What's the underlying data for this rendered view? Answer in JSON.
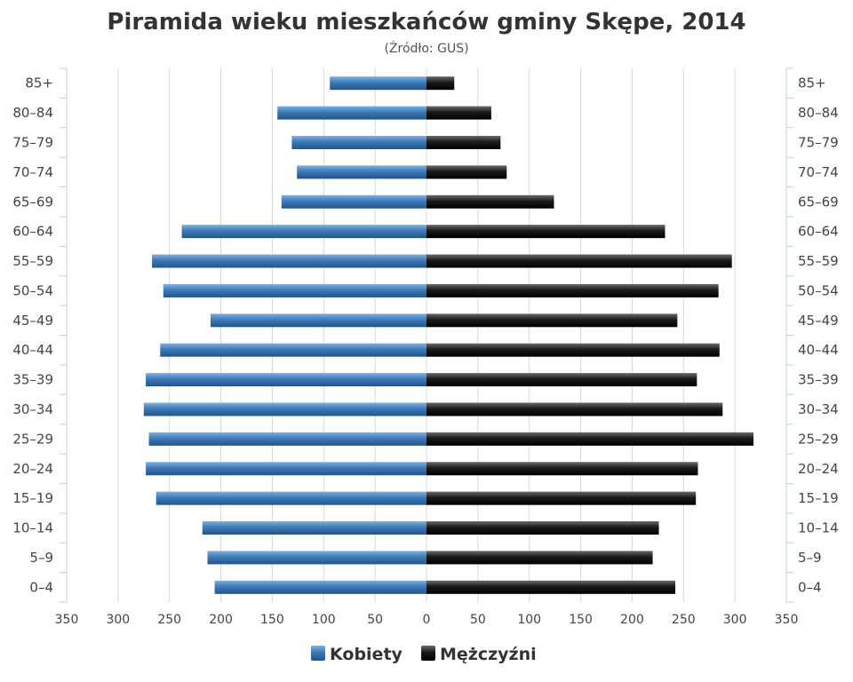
{
  "chart_data": {
    "type": "bar",
    "title": "Piramida wieku mieszkańców gminy Skępe, 2014",
    "subtitle": "(Źródło: GUS)",
    "categories": [
      "85+",
      "80–84",
      "75–79",
      "70–74",
      "65–69",
      "60–64",
      "55–59",
      "50–54",
      "45–49",
      "40–44",
      "35–39",
      "30–34",
      "25–29",
      "20–24",
      "15–19",
      "10–14",
      "5–9",
      "0–4"
    ],
    "series": [
      {
        "name": "Kobiety",
        "color": "#3d7ab8",
        "values": [
          94,
          145,
          131,
          126,
          141,
          238,
          267,
          256,
          210,
          259,
          273,
          275,
          270,
          273,
          263,
          218,
          213,
          206
        ]
      },
      {
        "name": "Mężczyźni",
        "color": "#1a1a1a",
        "values": [
          27,
          63,
          72,
          78,
          124,
          232,
          297,
          284,
          244,
          285,
          263,
          288,
          318,
          264,
          262,
          226,
          220,
          242
        ]
      }
    ],
    "xlim": [
      -350,
      350
    ],
    "x_ticks": [
      "350",
      "300",
      "250",
      "200",
      "150",
      "100",
      "50",
      "0",
      "50",
      "100",
      "150",
      "200",
      "250",
      "300",
      "350"
    ],
    "grid": true,
    "legend": "bottom-center"
  }
}
